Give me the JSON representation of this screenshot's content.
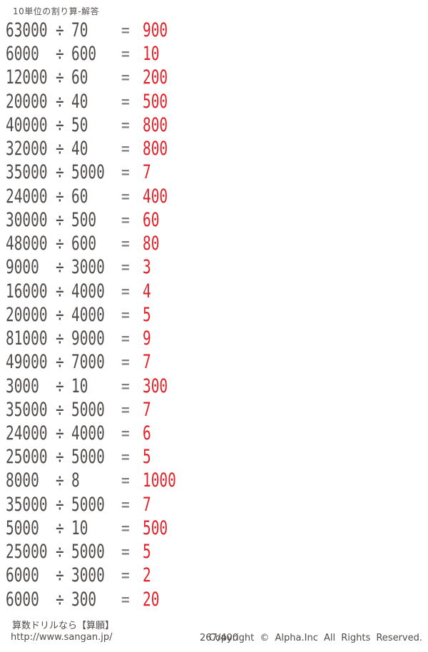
{
  "page_title": "10単位の割り算-解答",
  "symbols": {
    "divide": "÷",
    "equals": "="
  },
  "colors": {
    "problem_text": "#4f4b49",
    "answer_text": "#e22028",
    "background": "#ffffff"
  },
  "problems": [
    {
      "dividend": "63000",
      "divisor": "70",
      "answer": "900"
    },
    {
      "dividend": "6000",
      "divisor": "600",
      "answer": "10"
    },
    {
      "dividend": "12000",
      "divisor": "60",
      "answer": "200"
    },
    {
      "dividend": "20000",
      "divisor": "40",
      "answer": "500"
    },
    {
      "dividend": "40000",
      "divisor": "50",
      "answer": "800"
    },
    {
      "dividend": "32000",
      "divisor": "40",
      "answer": "800"
    },
    {
      "dividend": "35000",
      "divisor": "5000",
      "answer": "7"
    },
    {
      "dividend": "24000",
      "divisor": "60",
      "answer": "400"
    },
    {
      "dividend": "30000",
      "divisor": "500",
      "answer": "60"
    },
    {
      "dividend": "48000",
      "divisor": "600",
      "answer": "80"
    },
    {
      "dividend": "9000",
      "divisor": "3000",
      "answer": "3"
    },
    {
      "dividend": "16000",
      "divisor": "4000",
      "answer": "4"
    },
    {
      "dividend": "20000",
      "divisor": "4000",
      "answer": "5"
    },
    {
      "dividend": "81000",
      "divisor": "9000",
      "answer": "9"
    },
    {
      "dividend": "49000",
      "divisor": "7000",
      "answer": "7"
    },
    {
      "dividend": "3000",
      "divisor": "10",
      "answer": "300"
    },
    {
      "dividend": "35000",
      "divisor": "5000",
      "answer": "7"
    },
    {
      "dividend": "24000",
      "divisor": "4000",
      "answer": "6"
    },
    {
      "dividend": "25000",
      "divisor": "5000",
      "answer": "5"
    },
    {
      "dividend": "8000",
      "divisor": "8",
      "answer": "1000"
    },
    {
      "dividend": "35000",
      "divisor": "5000",
      "answer": "7"
    },
    {
      "dividend": "5000",
      "divisor": "10",
      "answer": "500"
    },
    {
      "dividend": "25000",
      "divisor": "5000",
      "answer": "5"
    },
    {
      "dividend": "6000",
      "divisor": "3000",
      "answer": "2"
    },
    {
      "dividend": "6000",
      "divisor": "300",
      "answer": "20"
    }
  ],
  "footer": {
    "site_text": "算数ドリルなら【算願】",
    "url": "http://www.sangan.jp/",
    "page_number": "267/400",
    "copyright": "Copyright ©  Alpha.Inc  All  Rights  Reserved."
  }
}
